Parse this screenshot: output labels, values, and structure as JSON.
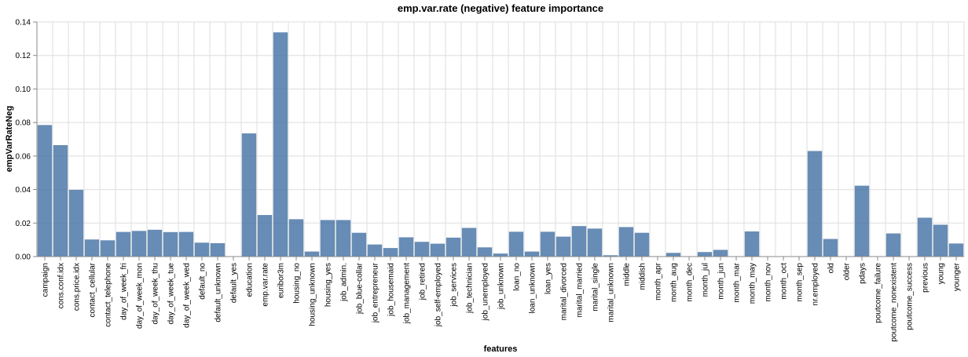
{
  "chart_data": {
    "type": "bar",
    "title": "emp.var.rate (negative) feature importance",
    "xlabel": "features",
    "ylabel": "empVarRateNeg",
    "ylim": [
      0,
      0.14
    ],
    "yticks": [
      "0.00",
      "0.02",
      "0.04",
      "0.06",
      "0.08",
      "0.10",
      "0.12",
      "0.14"
    ],
    "grid": true,
    "bar_color": "#4c78a8",
    "categories": [
      "campaign",
      "cons.conf.idx",
      "cons.price.idx",
      "contact_cellular",
      "contact_telephone",
      "day_of_week_fri",
      "day_of_week_mon",
      "day_of_week_thu",
      "day_of_week_tue",
      "day_of_week_wed",
      "default_no",
      "default_unknown",
      "default_yes",
      "education",
      "emp.var.rate",
      "euribor3m",
      "housing_no",
      "housing_unknown",
      "housing_yes",
      "job_admin.",
      "job_blue-collar",
      "job_entrepreneur",
      "job_housemaid",
      "job_management",
      "job_retired",
      "job_self-employed",
      "job_services",
      "job_technician",
      "job_unemployed",
      "job_unknown",
      "loan_no",
      "loan_unknown",
      "loan_yes",
      "marital_divorced",
      "marital_married",
      "marital_single",
      "marital_unknown",
      "middle",
      "middish",
      "month_apr",
      "month_aug",
      "month_dec",
      "month_jul",
      "month_jun",
      "month_mar",
      "month_may",
      "month_nov",
      "month_oct",
      "month_sep",
      "nr.employed",
      "old",
      "older",
      "pdays",
      "poutcome_failure",
      "poutcome_nonexistent",
      "poutcome_success",
      "previous",
      "young",
      "younger"
    ],
    "values": [
      0.0785,
      0.0665,
      0.0398,
      0.0102,
      0.0097,
      0.0147,
      0.0153,
      0.016,
      0.0146,
      0.0147,
      0.0083,
      0.008,
      0.0,
      0.0735,
      0.0248,
      0.1338,
      0.0223,
      0.003,
      0.0218,
      0.0218,
      0.0142,
      0.0072,
      0.0051,
      0.0115,
      0.0088,
      0.0077,
      0.0113,
      0.0171,
      0.0055,
      0.0018,
      0.0148,
      0.003,
      0.0148,
      0.0119,
      0.0182,
      0.0167,
      0.0008,
      0.0176,
      0.0142,
      0.0,
      0.0022,
      0.0,
      0.0027,
      0.004,
      0.0,
      0.015,
      0.0,
      0.0,
      0.0,
      0.063,
      0.0105,
      0.0,
      0.0423,
      0.0,
      0.0138,
      0.0,
      0.0232,
      0.019,
      0.0078
    ]
  }
}
